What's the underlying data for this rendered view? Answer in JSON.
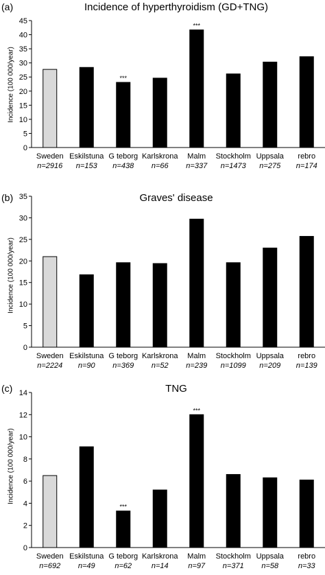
{
  "chart_data": [
    {
      "type": "bar",
      "panel_label": "(a)",
      "title": "Incidence of hyperthyroidism (GD+TNG)",
      "ylabel": "Incidence (100 000/year)",
      "ylim": [
        0,
        45
      ],
      "yticks": [
        0,
        5,
        10,
        15,
        20,
        25,
        30,
        35,
        40,
        45
      ],
      "categories": [
        "Sweden",
        "Eskilstuna",
        "G teborg",
        "Karlskrona",
        "Malm",
        "Stockholm",
        "Uppsala",
        "rebro"
      ],
      "n_labels": [
        "n=2916",
        "n=153",
        "n=438",
        "n=66",
        "n=337",
        "n=1473",
        "n=275",
        "n=174"
      ],
      "values": [
        27.7,
        28.4,
        23.1,
        24.6,
        41.7,
        26.1,
        30.3,
        32.2
      ],
      "significance": [
        "",
        "",
        "***",
        "",
        "***",
        "",
        "",
        ""
      ],
      "bar_colors": [
        "#d9d9d9",
        "#000000",
        "#000000",
        "#000000",
        "#000000",
        "#000000",
        "#000000",
        "#000000"
      ],
      "grid": false
    },
    {
      "type": "bar",
      "panel_label": "(b)",
      "title": "Graves' disease",
      "ylabel": "Incidence (100 000/year)",
      "ylim": [
        0,
        35
      ],
      "yticks": [
        0,
        5,
        10,
        15,
        20,
        25,
        30,
        35
      ],
      "categories": [
        "Sweden",
        "Eskilstuna",
        "G teborg",
        "Karlskrona",
        "Malm",
        "Stockholm",
        "Uppsala",
        "rebro"
      ],
      "n_labels": [
        "n=2224",
        "n=90",
        "n=369",
        "n=52",
        "n=239",
        "n=1099",
        "n=209",
        "n=139"
      ],
      "values": [
        21.0,
        16.8,
        19.6,
        19.4,
        29.7,
        19.6,
        23.0,
        25.7
      ],
      "significance": [
        "",
        "",
        "",
        "",
        "",
        "",
        "",
        ""
      ],
      "bar_colors": [
        "#d9d9d9",
        "#000000",
        "#000000",
        "#000000",
        "#000000",
        "#000000",
        "#000000",
        "#000000"
      ],
      "grid": false
    },
    {
      "type": "bar",
      "panel_label": "(c)",
      "title": "TNG",
      "ylabel": "Incidence (100 000/year)",
      "ylim": [
        0,
        14
      ],
      "yticks": [
        0,
        2,
        4,
        6,
        8,
        10,
        12,
        14
      ],
      "categories": [
        "Sweden",
        "Eskilstuna",
        "G teborg",
        "Karlskrona",
        "Malm",
        "Stockholm",
        "Uppsala",
        "rebro"
      ],
      "n_labels": [
        "n=692",
        "n=49",
        "n=62",
        "n=14",
        "n=97",
        "n=371",
        "n=58",
        "n=33"
      ],
      "values": [
        6.5,
        9.1,
        3.3,
        5.2,
        12.0,
        6.6,
        6.3,
        6.1
      ],
      "significance": [
        "",
        "",
        "***",
        "",
        "***",
        "",
        "",
        ""
      ],
      "bar_colors": [
        "#d9d9d9",
        "#000000",
        "#000000",
        "#000000",
        "#000000",
        "#000000",
        "#000000",
        "#000000"
      ],
      "grid": false
    }
  ]
}
